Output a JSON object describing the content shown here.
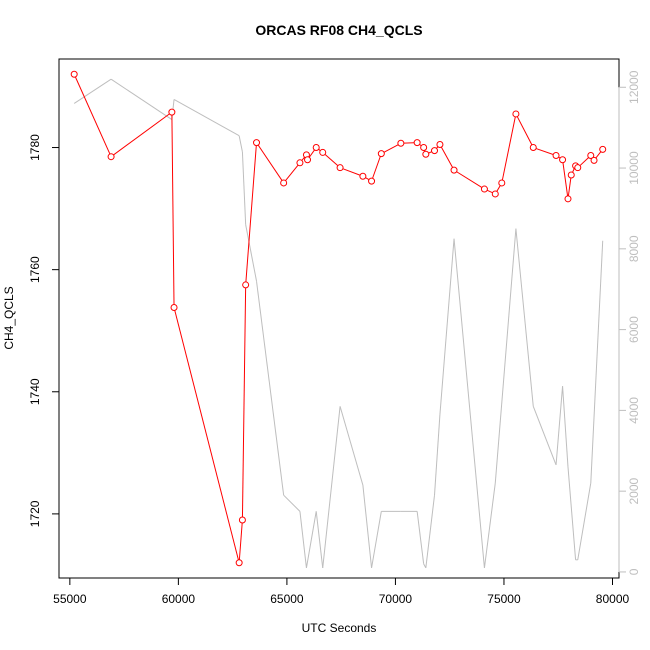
{
  "chart_data": {
    "type": "line",
    "title": "ORCAS RF08 CH4_QCLS",
    "xlabel": "UTC Seconds",
    "ylabel": "CH4_QCLS",
    "xlim": [
      54500,
      80300
    ],
    "ylim": [
      1709.5,
      1794.5
    ],
    "y2lim": [
      -150,
      12700
    ],
    "x_ticks": [
      55000,
      60000,
      65000,
      70000,
      75000,
      80000
    ],
    "x_tick_labels": [
      "55000",
      "60000",
      "65000",
      "70000",
      "75000",
      "80000"
    ],
    "y_ticks": [
      1720,
      1740,
      1760,
      1780
    ],
    "y_tick_labels": [
      "1720",
      "1740",
      "1760",
      "1780"
    ],
    "y2_ticks": [
      0,
      2000,
      4000,
      6000,
      8000,
      10000,
      12000
    ],
    "y2_tick_labels": [
      "0",
      "2000",
      "4000",
      "6000",
      "8000",
      "10000",
      "12000"
    ],
    "grid": false,
    "colors": {
      "primary": "#ff0000",
      "secondary": "#bebebe",
      "axis": "#000000"
    },
    "series": [
      {
        "axis": "left",
        "style": "line-with-circle-markers",
        "color": "#ff0000",
        "x": [
          55200,
          56900,
          59700,
          59800,
          62800,
          62950,
          63100,
          63600,
          64850,
          65600,
          65900,
          65950,
          66350,
          66650,
          67450,
          68500,
          68900,
          69350,
          70250,
          71000,
          71300,
          71400,
          71800,
          72050,
          72700,
          74100,
          74600,
          74900,
          75550,
          76350,
          77400,
          77700,
          77950,
          78100,
          78300,
          78400,
          79000,
          79150,
          79550
        ],
        "y": [
          1792.0,
          1778.5,
          1785.8,
          1753.8,
          1712.0,
          1719.0,
          1757.5,
          1780.8,
          1774.2,
          1777.5,
          1778.8,
          1778.0,
          1780.0,
          1779.2,
          1776.7,
          1775.3,
          1774.5,
          1779.0,
          1780.7,
          1780.8,
          1780.0,
          1778.9,
          1779.5,
          1780.5,
          1776.3,
          1773.2,
          1772.4,
          1774.2,
          1785.5,
          1780.0,
          1778.7,
          1778.0,
          1771.6,
          1775.5,
          1777.0,
          1776.7,
          1778.7,
          1777.9,
          1779.7
        ]
      },
      {
        "axis": "right",
        "style": "line",
        "color": "#bebebe",
        "x": [
          55200,
          56900,
          59700,
          59800,
          62800,
          62950,
          63100,
          63600,
          64850,
          65600,
          65900,
          66350,
          66650,
          67450,
          68500,
          68900,
          69350,
          70250,
          71000,
          71300,
          71400,
          71800,
          72050,
          72700,
          74100,
          74600,
          75550,
          76350,
          77400,
          77700,
          77950,
          78300,
          78400,
          79000,
          79550
        ],
        "y": [
          11600,
          12200,
          11200,
          11700,
          10800,
          10400,
          8600,
          7200,
          1900,
          1500,
          100,
          1500,
          100,
          4100,
          2150,
          100,
          1500,
          1500,
          1500,
          200,
          100,
          1900,
          3900,
          8250,
          100,
          2200,
          8500,
          4100,
          2650,
          4600,
          2600,
          300,
          300,
          2200,
          8200
        ]
      }
    ]
  }
}
